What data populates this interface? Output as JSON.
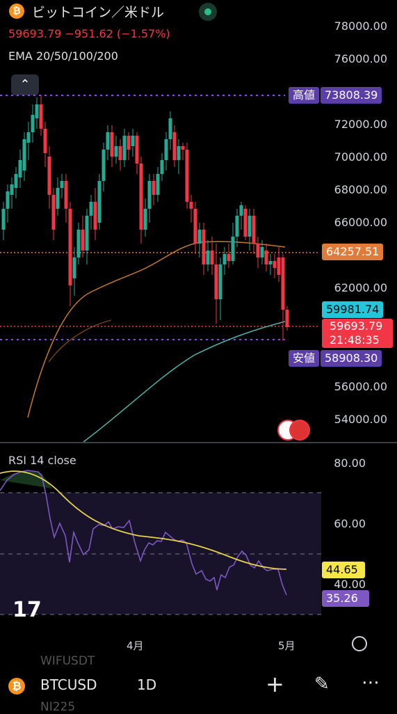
{
  "header": {
    "coin_symbol": "₿",
    "title": "ビットコイン／米ドル",
    "price": "59693.79",
    "change": "−951.62",
    "change_pct": "(−1.57%)",
    "indicator": "EMA 20/50/100/200",
    "collapse_icon": "chevron-up-icon"
  },
  "price_axis": {
    "labels": [
      "78000.00",
      "76000.00",
      "72000.00",
      "70000.00",
      "68000.00",
      "66000.00",
      "62000.00",
      "56000.00",
      "54000.00"
    ]
  },
  "tags": {
    "high_label": "高値",
    "high_value": "73808.39",
    "low_label": "安値",
    "low_value": "58908.30",
    "ema_value": "64257.51",
    "ema2_value": "59981.74",
    "last_price": "59693.79",
    "countdown": "21:48:35"
  },
  "rsi": {
    "title": "RSI 14 close",
    "axis": [
      "80.00",
      "60.00",
      "40.00"
    ],
    "value_yellow": "44.65",
    "value_purple": "35.26"
  },
  "time_axis": [
    "4月",
    "5月"
  ],
  "bottom_bar": {
    "symbol": "BTCUSD",
    "interval": "1D",
    "ghost1": "WIFUSDT",
    "ghost2": "NI225"
  },
  "colors": {
    "up": "#22ab94",
    "down": "#f23645",
    "ema_orange": "#c77a2a",
    "ema_teal": "#4fb3a9",
    "rsi_purple": "#7e57c2",
    "rsi_signal": "#e8d44d",
    "high_low_line": "#7e57c2"
  }
}
